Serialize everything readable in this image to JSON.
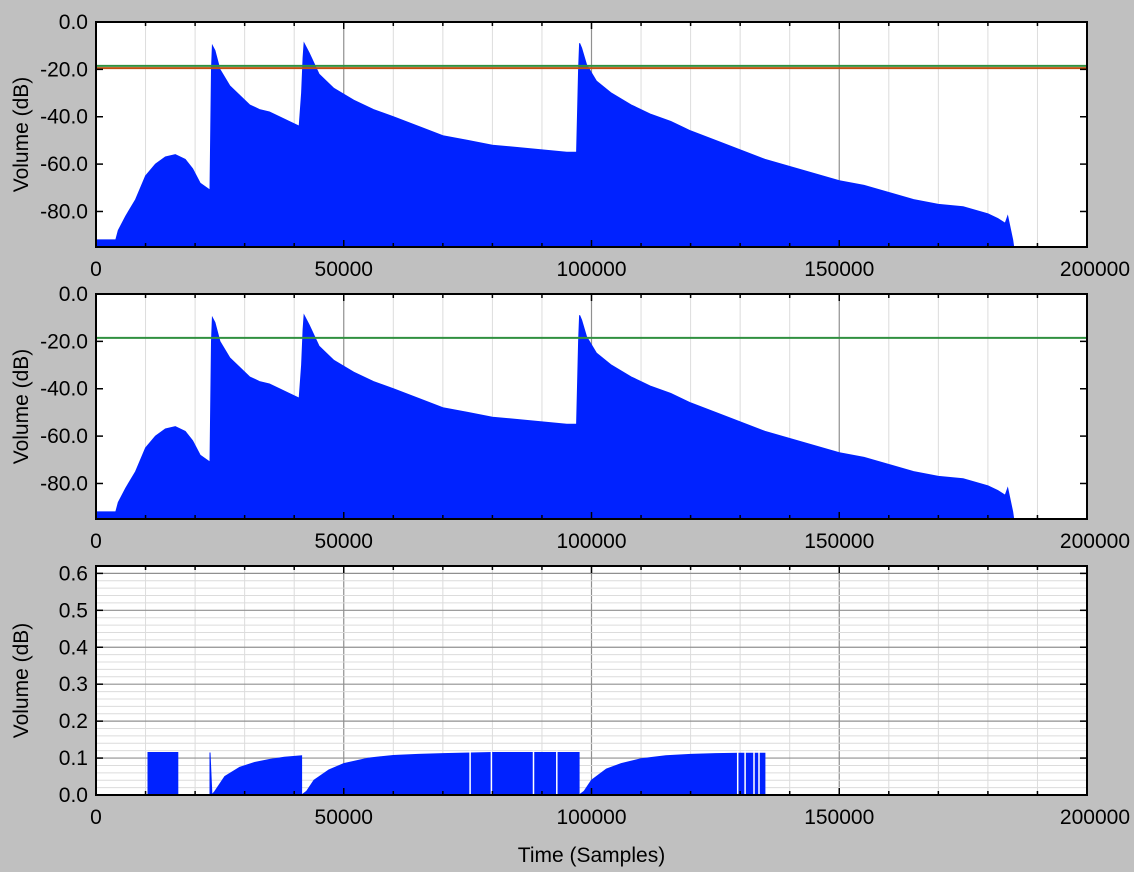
{
  "chart_data": [
    {
      "type": "area",
      "xlabel": "",
      "ylabel": "Volume (dB)",
      "xlim": [
        0,
        200000
      ],
      "ylim": [
        -95,
        0
      ],
      "xticks": [
        0,
        50000,
        100000,
        150000,
        200000
      ],
      "yticks": [
        0,
        -20,
        -40,
        -60,
        -80
      ],
      "grid": true,
      "series": [
        {
          "color": "#0022ff",
          "x": [
            0,
            4000,
            4500,
            6000,
            8000,
            10000,
            12000,
            14000,
            16000,
            18000,
            19500,
            21000,
            23000,
            23300,
            23500,
            24000,
            25000,
            27000,
            29000,
            31000,
            33000,
            35000,
            37000,
            39000,
            41000,
            41500,
            41800,
            42000,
            43000,
            45000,
            48000,
            52000,
            56000,
            60000,
            65000,
            70000,
            75000,
            80000,
            85000,
            90000,
            95000,
            97000,
            97400,
            97600,
            98000,
            99000,
            101000,
            104000,
            108000,
            112000,
            116000,
            120000,
            125000,
            130000,
            135000,
            140000,
            145000,
            150000,
            155000,
            160000,
            165000,
            170000,
            175000,
            180000,
            182000,
            183500,
            184000,
            185000,
            185200
          ],
          "values": [
            -92,
            -92,
            -88,
            -82,
            -75,
            -65,
            -60,
            -57,
            -56,
            -58,
            -62,
            -68,
            -71,
            -20,
            -10,
            -12,
            -20,
            -27,
            -31,
            -35,
            -37,
            -38,
            -40,
            -42,
            -44,
            -30,
            -15,
            -9,
            -13,
            -22,
            -28,
            -33,
            -37,
            -40,
            -44,
            -48,
            -50,
            -52,
            -53,
            -54,
            -55,
            -55,
            -20,
            -9,
            -11,
            -18,
            -25,
            -30,
            -35,
            -39,
            -42,
            -46,
            -50,
            -54,
            -58,
            -61,
            -64,
            -67,
            -69,
            -72,
            -75,
            -77,
            -78,
            -81,
            -83,
            -85,
            -82,
            -92,
            -95
          ]
        }
      ],
      "reference_lines": [
        {
          "y": -19.5,
          "color": "#c05010"
        },
        {
          "y": -18.5,
          "color": "#309040"
        }
      ]
    },
    {
      "type": "area",
      "xlabel": "",
      "ylabel": "Volume (dB)",
      "xlim": [
        0,
        200000
      ],
      "ylim": [
        -95,
        0
      ],
      "xticks": [
        0,
        50000,
        100000,
        150000,
        200000
      ],
      "yticks": [
        0,
        -20,
        -40,
        -60,
        -80
      ],
      "grid": true,
      "series": [
        {
          "color": "#0022ff",
          "x": [
            0,
            4000,
            4500,
            6000,
            8000,
            10000,
            12000,
            14000,
            16000,
            18000,
            19500,
            21000,
            23000,
            23300,
            23500,
            24000,
            25000,
            27000,
            29000,
            31000,
            33000,
            35000,
            37000,
            39000,
            41000,
            41500,
            41800,
            42000,
            43000,
            45000,
            48000,
            52000,
            56000,
            60000,
            65000,
            70000,
            75000,
            80000,
            85000,
            90000,
            95000,
            97000,
            97400,
            97600,
            98000,
            99000,
            101000,
            104000,
            108000,
            112000,
            116000,
            120000,
            125000,
            130000,
            135000,
            140000,
            145000,
            150000,
            155000,
            160000,
            165000,
            170000,
            175000,
            180000,
            182000,
            183500,
            184000,
            185000,
            185200
          ],
          "values": [
            -92,
            -92,
            -88,
            -82,
            -75,
            -65,
            -60,
            -57,
            -56,
            -58,
            -62,
            -68,
            -71,
            -20,
            -10,
            -12,
            -20,
            -27,
            -31,
            -35,
            -37,
            -38,
            -40,
            -42,
            -44,
            -30,
            -15,
            -9,
            -13,
            -22,
            -28,
            -33,
            -37,
            -40,
            -44,
            -48,
            -50,
            -52,
            -53,
            -54,
            -55,
            -55,
            -20,
            -9,
            -11,
            -18,
            -25,
            -30,
            -35,
            -39,
            -42,
            -46,
            -50,
            -54,
            -58,
            -61,
            -64,
            -67,
            -69,
            -72,
            -75,
            -77,
            -78,
            -81,
            -83,
            -85,
            -82,
            -92,
            -95
          ]
        }
      ],
      "reference_lines": [
        {
          "y": -18.5,
          "color": "#309040"
        }
      ]
    },
    {
      "type": "area",
      "xlabel": "Time (Samples)",
      "ylabel": "Volume (dB)",
      "xlim": [
        0,
        200000
      ],
      "ylim": [
        0,
        0.62
      ],
      "xticks": [
        0,
        50000,
        100000,
        150000,
        200000
      ],
      "yticks": [
        0.0,
        0.1,
        0.2,
        0.3,
        0.4,
        0.5,
        0.6
      ],
      "grid": true,
      "series": [
        {
          "color": "#0022ff",
          "x": [
            10500,
            10500,
            16500,
            16500,
            23000,
            23000,
            23400,
            24000,
            26000,
            29000,
            32000,
            35000,
            38000,
            41500,
            41500,
            42500,
            44000,
            47000,
            50000,
            55000,
            60000,
            65000,
            70000,
            80000,
            90000,
            97500,
            97500,
            98500,
            100000,
            103000,
            106000,
            110000,
            115000,
            120000,
            125000,
            130000,
            135000,
            135000
          ],
          "values": [
            0,
            0.115,
            0.115,
            0,
            0,
            0.115,
            0.0,
            0.01,
            0.05,
            0.075,
            0.088,
            0.096,
            0.102,
            0.106,
            0.0,
            0.01,
            0.04,
            0.068,
            0.085,
            0.1,
            0.107,
            0.11,
            0.112,
            0.115,
            0.115,
            0.115,
            0.0,
            0.01,
            0.04,
            0.07,
            0.085,
            0.098,
            0.106,
            0.11,
            0.112,
            0.113,
            0.113,
            0
          ]
        }
      ],
      "reference_lines": []
    }
  ]
}
